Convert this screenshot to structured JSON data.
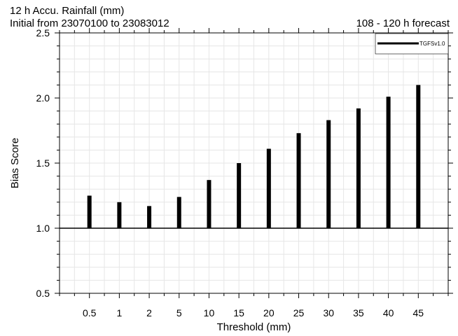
{
  "title_line1": "12 h Accu. Rainfall (mm)",
  "title_line2": "Initial from 23070100 to 23083012",
  "title_right": "108 - 120 h forecast",
  "chart_data": {
    "type": "bar",
    "title": "12 h Accu. Rainfall (mm)",
    "xlabel": "Threshold (mm)",
    "ylabel": "Bias Score",
    "categories": [
      "0.5",
      "1",
      "2",
      "5",
      "10",
      "15",
      "20",
      "25",
      "30",
      "35",
      "40",
      "45"
    ],
    "series": [
      {
        "name": "TGFSv1.0",
        "values": [
          1.25,
          1.2,
          1.17,
          1.24,
          1.37,
          1.5,
          1.61,
          1.73,
          1.83,
          1.92,
          2.01,
          2.1
        ]
      }
    ],
    "baseline": 1.0,
    "ylim": [
      0.5,
      2.5
    ],
    "yticks": [
      "0.5",
      "1.0",
      "1.5",
      "2.0",
      "2.5"
    ],
    "grid": true,
    "legend": "top-right",
    "colors": {
      "bars": "#000000",
      "grid": "#e6e6e6",
      "baseline": "#000000"
    }
  }
}
